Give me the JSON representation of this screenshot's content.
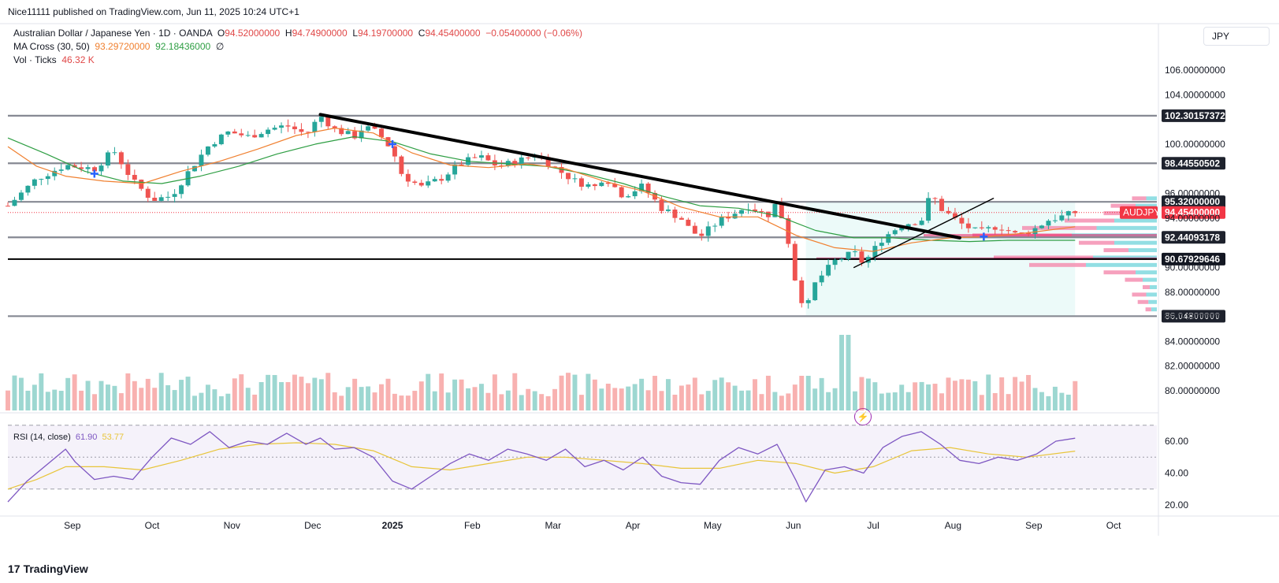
{
  "header": {
    "publisher": "Nice11111 published on TradingView.com, Jun 11, 2025 10:24 UTC+1"
  },
  "legend": {
    "symbol": "Australian Dollar / Japanese Yen · 1D · OANDA",
    "o_label": "O",
    "o": "94.52000000",
    "h_label": "H",
    "h": "94.74900000",
    "l_label": "L",
    "l": "94.19700000",
    "c_label": "C",
    "c": "94.45400000",
    "change": "−0.05400000 (−0.06%)",
    "ma_label": "MA Cross (30, 50)",
    "ma30": "93.29720000",
    "ma50": "92.18436000",
    "ma_extra": "∅",
    "vol_label": "Vol · Ticks",
    "vol": "46.32 K"
  },
  "rsi": {
    "label": "RSI (14, close)",
    "value": "61.90",
    "ma": "53.77"
  },
  "currency": "JPY",
  "brand": {
    "logo": "17",
    "name": "TradingView"
  },
  "colors": {
    "up": "#26a69a",
    "down": "#ef5350",
    "ma30": "#f08030",
    "ma50": "#2e9e43",
    "rsi": "#7e57c2",
    "rsi_ma": "#e8c53a",
    "level": "#787b86",
    "accent_price": "#f23645"
  },
  "chart_data": {
    "type": "candlestick",
    "price_axis": {
      "ticks": [
        "106.00000000",
        "104.00000000",
        "100.00000000",
        "96.00000000",
        "94.00000000",
        "90.00000000",
        "88.00000000",
        "86.00000000",
        "84.00000000",
        "82.00000000",
        "80.00000000"
      ],
      "tick_values": [
        106,
        104,
        100,
        96,
        94,
        90,
        88,
        86,
        84,
        82,
        80
      ],
      "range": [
        79,
        108
      ]
    },
    "time_axis": {
      "labels": [
        "Sep",
        "Oct",
        "Nov",
        "Dec",
        "2025",
        "Feb",
        "Mar",
        "Apr",
        "May",
        "Jun",
        "Jul",
        "Aug",
        "Sep",
        "Oct"
      ]
    },
    "levels": [
      {
        "value": 102.30157372,
        "label": "102.30157372",
        "style": "gray"
      },
      {
        "value": 98.44550502,
        "label": "98.44550502",
        "style": "gray"
      },
      {
        "value": 95.32,
        "label": "95.32000000",
        "style": "gray"
      },
      {
        "value": 92.44093178,
        "label": "92.44093178",
        "style": "gray"
      },
      {
        "value": 90.67929646,
        "label": "90.67929646",
        "style": "black"
      },
      {
        "value": 86.048,
        "label": "86.04800000",
        "style": "gray"
      }
    ],
    "last_price": {
      "value": 94.454,
      "symbol": "AUDJPY",
      "label": "94.45400000"
    },
    "price_path": [
      [
        2024.6,
        95.0
      ],
      [
        2024.63,
        97.2
      ],
      [
        2024.66,
        98.3
      ],
      [
        2024.69,
        98.0
      ],
      [
        2024.71,
        99.5
      ],
      [
        2024.73,
        97.0
      ],
      [
        2024.75,
        95.5
      ],
      [
        2024.77,
        95.8
      ],
      [
        2024.79,
        98.0
      ],
      [
        2024.81,
        100.0
      ],
      [
        2024.83,
        101.0
      ],
      [
        2024.85,
        100.6
      ],
      [
        2024.87,
        101.2
      ],
      [
        2024.89,
        101.5
      ],
      [
        2024.91,
        100.8
      ],
      [
        2024.925,
        102.3
      ],
      [
        2024.94,
        101.2
      ],
      [
        2024.96,
        100.6
      ],
      [
        2024.97,
        101.4
      ],
      [
        2024.985,
        100.9
      ],
      [
        2025.0,
        99.5
      ],
      [
        2025.01,
        97.5
      ],
      [
        2025.03,
        96.5
      ],
      [
        2025.05,
        97.2
      ],
      [
        2025.07,
        98.4
      ],
      [
        2025.09,
        99.0
      ],
      [
        2025.11,
        98.2
      ],
      [
        2025.13,
        98.6
      ],
      [
        2025.15,
        99.2
      ],
      [
        2025.17,
        98.0
      ],
      [
        2025.19,
        97.0
      ],
      [
        2025.21,
        96.5
      ],
      [
        2025.22,
        97.4
      ],
      [
        2025.24,
        95.8
      ],
      [
        2025.26,
        96.6
      ],
      [
        2025.28,
        94.8
      ],
      [
        2025.3,
        94.0
      ],
      [
        2025.31,
        93.0
      ],
      [
        2025.32,
        92.5
      ],
      [
        2025.34,
        93.8
      ],
      [
        2025.36,
        94.6
      ],
      [
        2025.37,
        95.0
      ],
      [
        2025.39,
        94.2
      ],
      [
        2025.4,
        95.3
      ],
      [
        2025.41,
        92.8
      ],
      [
        2025.42,
        88.5
      ],
      [
        2025.43,
        86.5
      ],
      [
        2025.44,
        88.8
      ],
      [
        2025.46,
        90.5
      ],
      [
        2025.48,
        91.2
      ],
      [
        2025.49,
        90.3
      ],
      [
        2025.51,
        92.4
      ],
      [
        2025.53,
        93.5
      ],
      [
        2025.55,
        93.8
      ],
      [
        2025.56,
        96.0
      ],
      [
        2025.57,
        94.8
      ],
      [
        2025.59,
        93.6
      ],
      [
        2025.61,
        92.8
      ],
      [
        2025.63,
        93.4
      ],
      [
        2025.65,
        92.6
      ],
      [
        2025.67,
        93.2
      ],
      [
        2025.68,
        93.8
      ],
      [
        2025.7,
        94.2
      ],
      [
        2025.71,
        94.454
      ]
    ],
    "ma30_path": [
      [
        2024.6,
        99.8
      ],
      [
        2024.63,
        98.2
      ],
      [
        2024.66,
        97.4
      ],
      [
        2024.7,
        97.0
      ],
      [
        2024.74,
        96.8
      ],
      [
        2024.78,
        97.8
      ],
      [
        2024.82,
        98.6
      ],
      [
        2024.86,
        99.6
      ],
      [
        2024.9,
        100.7
      ],
      [
        2024.94,
        101.3
      ],
      [
        2024.98,
        100.9
      ],
      [
        2025.02,
        99.3
      ],
      [
        2025.06,
        98.3
      ],
      [
        2025.1,
        98.1
      ],
      [
        2025.14,
        98.4
      ],
      [
        2025.18,
        98.0
      ],
      [
        2025.22,
        97.0
      ],
      [
        2025.26,
        96.2
      ],
      [
        2025.3,
        94.9
      ],
      [
        2025.34,
        94.1
      ],
      [
        2025.38,
        94.1
      ],
      [
        2025.42,
        92.6
      ],
      [
        2025.46,
        91.6
      ],
      [
        2025.5,
        91.3
      ],
      [
        2025.54,
        92.0
      ],
      [
        2025.58,
        92.4
      ],
      [
        2025.62,
        92.5
      ],
      [
        2025.66,
        92.8
      ],
      [
        2025.71,
        93.3
      ]
    ],
    "ma50_path": [
      [
        2024.6,
        100.5
      ],
      [
        2024.64,
        99.2
      ],
      [
        2024.68,
        97.8
      ],
      [
        2024.72,
        97.0
      ],
      [
        2024.76,
        96.8
      ],
      [
        2024.8,
        97.4
      ],
      [
        2024.84,
        98.2
      ],
      [
        2024.88,
        99.2
      ],
      [
        2024.92,
        100.0
      ],
      [
        2024.96,
        100.6
      ],
      [
        2025.0,
        100.2
      ],
      [
        2025.04,
        99.2
      ],
      [
        2025.08,
        98.6
      ],
      [
        2025.12,
        98.4
      ],
      [
        2025.16,
        98.2
      ],
      [
        2025.2,
        97.6
      ],
      [
        2025.24,
        96.8
      ],
      [
        2025.28,
        95.8
      ],
      [
        2025.32,
        95.0
      ],
      [
        2025.36,
        94.8
      ],
      [
        2025.4,
        94.2
      ],
      [
        2025.44,
        93.0
      ],
      [
        2025.48,
        92.4
      ],
      [
        2025.52,
        92.4
      ],
      [
        2025.56,
        92.2
      ],
      [
        2025.6,
        92.1
      ],
      [
        2025.64,
        92.2
      ],
      [
        2025.68,
        92.2
      ],
      [
        2025.71,
        92.2
      ]
    ],
    "trendlines": [
      {
        "from": [
          2024.925,
          102.4
        ],
        "to": [
          2025.59,
          92.4
        ],
        "color": "#000000"
      },
      {
        "from": [
          2025.48,
          90.0
        ],
        "to": [
          2025.625,
          95.6
        ],
        "color": "#000000"
      }
    ],
    "cross_markers": [
      {
        "at": [
          2024.69,
          97.6
        ]
      },
      {
        "at": [
          2025.0,
          100.0
        ]
      },
      {
        "at": [
          2025.615,
          92.5
        ]
      }
    ],
    "volume_profile": {
      "bins": [
        95.6,
        95.0,
        94.4,
        93.8,
        93.2,
        92.6,
        92.0,
        91.4,
        90.8,
        90.2,
        89.6,
        89.0,
        88.4,
        87.8,
        87.2,
        86.6
      ],
      "up": [
        1.5,
        3.0,
        4.5,
        6.0,
        8.5,
        12.0,
        6.0,
        4.0,
        9.0,
        10.0,
        3.0,
        2.0,
        1.0,
        1.5,
        1.2,
        0.8
      ],
      "down": [
        2.0,
        3.5,
        3.0,
        7.0,
        10.5,
        14.0,
        5.0,
        3.5,
        14.0,
        8.0,
        4.5,
        2.5,
        1.0,
        2.0,
        1.5,
        0.8
      ]
    },
    "volume": {
      "label": "Vol · Ticks",
      "last_value": "46.32 K",
      "spikes": [
        [
          2024.89,
          90
        ],
        [
          2025.43,
          110
        ],
        [
          2025.47,
          240
        ]
      ]
    },
    "rsi": {
      "ticks": [
        "60.00",
        "40.00",
        "20.00"
      ],
      "tick_values": [
        60,
        40,
        20
      ],
      "range": [
        15,
        73
      ],
      "bands": [
        70,
        30
      ],
      "path": [
        [
          2024.6,
          22
        ],
        [
          2024.62,
          35
        ],
        [
          2024.64,
          45
        ],
        [
          2024.66,
          55
        ],
        [
          2024.67,
          47
        ],
        [
          2024.69,
          36
        ],
        [
          2024.71,
          38
        ],
        [
          2024.73,
          36
        ],
        [
          2024.75,
          50
        ],
        [
          2024.77,
          62
        ],
        [
          2024.79,
          58
        ],
        [
          2024.81,
          66
        ],
        [
          2024.83,
          56
        ],
        [
          2024.85,
          60
        ],
        [
          2024.87,
          58
        ],
        [
          2024.89,
          65
        ],
        [
          2024.91,
          58
        ],
        [
          2024.925,
          62
        ],
        [
          2024.94,
          55
        ],
        [
          2024.96,
          56
        ],
        [
          2024.98,
          50
        ],
        [
          2025.0,
          35
        ],
        [
          2025.02,
          30
        ],
        [
          2025.04,
          38
        ],
        [
          2025.06,
          46
        ],
        [
          2025.08,
          52
        ],
        [
          2025.1,
          48
        ],
        [
          2025.12,
          55
        ],
        [
          2025.14,
          52
        ],
        [
          2025.16,
          48
        ],
        [
          2025.18,
          55
        ],
        [
          2025.2,
          44
        ],
        [
          2025.22,
          48
        ],
        [
          2025.24,
          42
        ],
        [
          2025.26,
          50
        ],
        [
          2025.28,
          38
        ],
        [
          2025.3,
          34
        ],
        [
          2025.32,
          33
        ],
        [
          2025.34,
          48
        ],
        [
          2025.36,
          56
        ],
        [
          2025.38,
          52
        ],
        [
          2025.4,
          58
        ],
        [
          2025.42,
          35
        ],
        [
          2025.43,
          22
        ],
        [
          2025.45,
          42
        ],
        [
          2025.47,
          44
        ],
        [
          2025.49,
          40
        ],
        [
          2025.51,
          56
        ],
        [
          2025.53,
          63
        ],
        [
          2025.55,
          66
        ],
        [
          2025.57,
          58
        ],
        [
          2025.59,
          48
        ],
        [
          2025.61,
          46
        ],
        [
          2025.63,
          50
        ],
        [
          2025.65,
          48
        ],
        [
          2025.67,
          52
        ],
        [
          2025.69,
          60
        ],
        [
          2025.71,
          61.9
        ]
      ],
      "ma_path": [
        [
          2024.6,
          30
        ],
        [
          2024.63,
          36
        ],
        [
          2024.66,
          44
        ],
        [
          2024.7,
          44
        ],
        [
          2024.74,
          42
        ],
        [
          2024.78,
          48
        ],
        [
          2024.82,
          55
        ],
        [
          2024.86,
          58
        ],
        [
          2024.9,
          59
        ],
        [
          2024.94,
          58
        ],
        [
          2024.98,
          54
        ],
        [
          2025.02,
          44
        ],
        [
          2025.06,
          42
        ],
        [
          2025.1,
          46
        ],
        [
          2025.14,
          50
        ],
        [
          2025.18,
          50
        ],
        [
          2025.22,
          48
        ],
        [
          2025.26,
          46
        ],
        [
          2025.3,
          43
        ],
        [
          2025.34,
          43
        ],
        [
          2025.38,
          48
        ],
        [
          2025.42,
          46
        ],
        [
          2025.46,
          40
        ],
        [
          2025.5,
          44
        ],
        [
          2025.54,
          54
        ],
        [
          2025.58,
          56
        ],
        [
          2025.62,
          52
        ],
        [
          2025.66,
          50
        ],
        [
          2025.71,
          53.77
        ]
      ]
    }
  }
}
